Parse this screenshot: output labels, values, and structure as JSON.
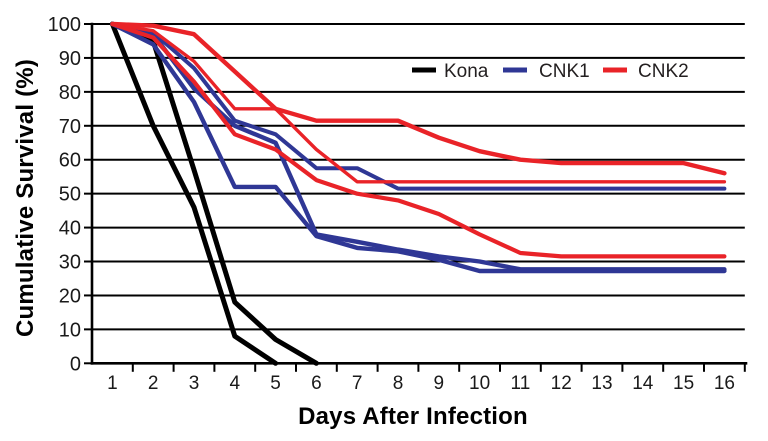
{
  "figure": {
    "background": "#ffffff",
    "description": "Cumulative survival line chart comparing Kona, CNK1 and CNK2 groups after infection"
  },
  "chart_data": {
    "type": "line",
    "title": "",
    "xlabel": "Days After Infection",
    "ylabel": "Cumulative Survival (%)",
    "x_ticks": [
      1,
      2,
      3,
      4,
      5,
      6,
      7,
      8,
      9,
      10,
      11,
      12,
      13,
      14,
      15,
      16
    ],
    "y_ticks": [
      0,
      10,
      20,
      30,
      40,
      50,
      60,
      70,
      80,
      90,
      100
    ],
    "xlim": [
      0.5,
      16.5
    ],
    "ylim": [
      0,
      100
    ],
    "grid": "horizontal",
    "colors": {
      "kona": "#000000",
      "cnk1": "#2f3795",
      "cnk2": "#e92328"
    },
    "legend": {
      "position": "top-right-inside",
      "entries": [
        {
          "label": "Kona",
          "color": "#000000"
        },
        {
          "label": "CNK1",
          "color": "#2f3795"
        },
        {
          "label": "CNK2",
          "color": "#e92328"
        }
      ]
    },
    "series": [
      {
        "name": "Kona-rep1",
        "group": "Kona",
        "color": "#000000",
        "width": 5,
        "days": [
          1,
          2,
          3,
          4,
          5
        ],
        "values": [
          100,
          70,
          46,
          8,
          0
        ]
      },
      {
        "name": "Kona-rep2",
        "group": "Kona",
        "color": "#000000",
        "width": 5,
        "days": [
          1,
          2,
          3,
          4,
          5,
          6
        ],
        "values": [
          100,
          95,
          57,
          18,
          7,
          0
        ]
      },
      {
        "name": "CNK1-rep1",
        "group": "CNK1",
        "color": "#2f3795",
        "width": 4,
        "days": [
          1,
          2,
          3,
          4,
          5,
          6,
          7,
          8,
          9,
          10,
          11,
          12,
          13,
          14,
          15,
          16
        ],
        "values": [
          100,
          97.5,
          87,
          71.5,
          67.5,
          57.5,
          57.5,
          51.5,
          51.5,
          51.5,
          51.5,
          51.5,
          51.5,
          51.5,
          51.5,
          51.5
        ]
      },
      {
        "name": "CNK1-rep2",
        "group": "CNK1",
        "color": "#2f3795",
        "width": 4.4,
        "days": [
          1,
          2,
          3,
          4,
          5,
          6,
          7,
          8,
          9,
          10,
          11,
          12,
          13,
          14,
          15,
          16
        ],
        "values": [
          100,
          97,
          81,
          70,
          65,
          38,
          35.8,
          33.5,
          31.5,
          30,
          27.7,
          27.7,
          27.7,
          27.7,
          27.7,
          27.7
        ]
      },
      {
        "name": "CNK1-rep3",
        "group": "CNK1",
        "color": "#2f3795",
        "width": 4.4,
        "days": [
          1,
          2,
          3,
          4,
          5,
          6,
          7,
          8,
          9,
          10,
          11,
          12,
          13,
          14,
          15,
          16
        ],
        "values": [
          100,
          94,
          77,
          52,
          52,
          37.5,
          34,
          33,
          30.5,
          27.2,
          27.2,
          27.2,
          27.2,
          27.2,
          27.2,
          27.2
        ]
      },
      {
        "name": "CNK2-rep1",
        "group": "CNK2",
        "color": "#e92328",
        "width": 4.4,
        "days": [
          1,
          2,
          3,
          4,
          5,
          6,
          7,
          8,
          9,
          10,
          11,
          12,
          13,
          14,
          15,
          16
        ],
        "values": [
          100,
          99.5,
          97,
          86,
          75,
          71.5,
          71.5,
          71.5,
          66.5,
          62.5,
          60,
          59,
          59,
          59,
          59,
          56
        ]
      },
      {
        "name": "CNK2-rep2",
        "group": "CNK2",
        "color": "#e92328",
        "width": 3.4,
        "days": [
          1,
          2,
          3,
          4,
          5,
          6,
          7,
          8,
          9,
          10,
          11,
          12,
          13,
          14,
          15,
          16
        ],
        "values": [
          100,
          98,
          89,
          75,
          75,
          63,
          53.5,
          53.5,
          53.5,
          53.5,
          53.5,
          53.5,
          53.5,
          53.5,
          53.5,
          53.5
        ]
      },
      {
        "name": "CNK2-rep3",
        "group": "CNK2",
        "color": "#e92328",
        "width": 4.2,
        "days": [
          1,
          2,
          3,
          4,
          5,
          6,
          7,
          8,
          9,
          10,
          11,
          12,
          13,
          14,
          15,
          16
        ],
        "values": [
          100,
          96,
          83,
          67.5,
          63,
          54,
          50,
          48,
          44,
          38,
          32.5,
          31.5,
          31.5,
          31.5,
          31.5,
          31.5
        ]
      }
    ]
  }
}
